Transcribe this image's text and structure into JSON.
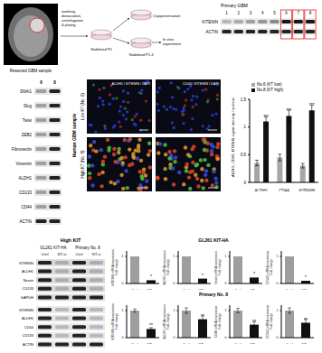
{
  "schematic": {
    "image_label": "Resected GBM sample",
    "process": [
      "washing,",
      "dissociation,",
      "centrifugation",
      "& plating"
    ],
    "stages": [
      "Stabilized P0",
      "Stabilized P1-3"
    ],
    "cryo": "Cryopreservation",
    "experiment": [
      "In vitro",
      "experiment"
    ]
  },
  "blot_primary": {
    "title": "Primary GBM",
    "lanes": [
      "1",
      "2",
      "3",
      "4",
      "5",
      "6",
      "7",
      "8"
    ],
    "rows": [
      "KITENIN",
      "ACTIN"
    ],
    "highlighted": [
      "6",
      "7",
      "8"
    ]
  },
  "blot_emt": {
    "lanes": [
      "6",
      "8"
    ],
    "rows": [
      "SNAI1",
      "Slug",
      "Twist",
      "ZEB2",
      "Fibronectin",
      "Vimentin",
      "ALDH1",
      "CD133",
      "CD44",
      "ACTIN"
    ]
  },
  "immunofluorescence": {
    "title": "Human GBM sample",
    "rows": [
      "Low KT (No. 6)",
      "High KT (No. 8)"
    ],
    "stains": [
      "ALDH1 / KITENIN / DAPI",
      "CD44 / KITENIN / DAPI"
    ]
  },
  "blot_knockdown": {
    "title": "High KIT",
    "groups": [
      "GL261 KIT-HA",
      "Primary No. 8"
    ],
    "lanes": [
      "Cntrl",
      "KIT-si"
    ],
    "rows": [
      "KITENIN",
      "ALDH1",
      "Nestin",
      "CD133",
      "GAPDH",
      "KITENIN",
      "ALDH1",
      "CD44",
      "CD133",
      "ACTIN"
    ]
  },
  "chart_data": [
    {
      "type": "bar",
      "y_label": "ALDH1, CD44, KITENIN signal intensity / nucleus",
      "categories": [
        "ALDH1",
        "CD44",
        "KITENIN"
      ],
      "series": [
        {
          "name": "No.6 (KT low)",
          "color": "#a6a6a6",
          "values": [
            0.35,
            0.45,
            0.3
          ],
          "errors": [
            0.05,
            0.06,
            0.04
          ]
        },
        {
          "name": "No.8 (KT high)",
          "color": "#111111",
          "values": [
            1.1,
            1.2,
            1.3
          ],
          "errors": [
            0.08,
            0.1,
            0.09
          ]
        }
      ],
      "annotations": [
        "***",
        "***",
        "***"
      ],
      "ylim": [
        0,
        1.5
      ],
      "yticks": [
        0,
        0.5,
        1,
        1.5
      ],
      "legend": "top-left"
    },
    {
      "type": "bar",
      "title": "GL261 KIT-HA",
      "y_label": [
        "KITENIN mRNA expression,",
        "Fold change"
      ],
      "categories": [
        "Cntrl",
        "KIT-si"
      ],
      "values": [
        1,
        0.12
      ],
      "colors": [
        "#9e9e9e",
        "#111111"
      ],
      "annotation": "*",
      "ylim": [
        0,
        1.2
      ],
      "yticks": [
        0,
        1
      ]
    },
    {
      "type": "bar",
      "y_label": [
        "ALDH1 mRNA expression,",
        "Fold change"
      ],
      "categories": [
        "Cntrl",
        "KIT-si"
      ],
      "values": [
        1,
        0.18
      ],
      "colors": [
        "#9e9e9e",
        "#111111"
      ],
      "annotation": "*",
      "ylim": [
        0,
        1.2
      ],
      "yticks": [
        0,
        1
      ]
    },
    {
      "type": "bar",
      "y_label": [
        "Nestin mRNA expression,",
        "Fold change"
      ],
      "categories": [
        "Cntrl",
        "KIT-si"
      ],
      "values": [
        1,
        0.22
      ],
      "colors": [
        "#9e9e9e",
        "#111111"
      ],
      "annotation": "*",
      "ylim": [
        0,
        1.2
      ],
      "yticks": [
        0,
        1
      ]
    },
    {
      "type": "bar",
      "y_label": [
        "CD133 mRNA expression,",
        "Fold change"
      ],
      "categories": [
        "Cntrl",
        "KIT-si"
      ],
      "values": [
        1,
        0.1
      ],
      "colors": [
        "#9e9e9e",
        "#111111"
      ],
      "annotation": "*",
      "ylim": [
        0,
        1.2
      ],
      "yticks": [
        0,
        1
      ]
    },
    {
      "type": "bar",
      "title": "Primary No. 8",
      "y_label": [
        "KITENIN mRNA expression,",
        "Fold change"
      ],
      "categories": [
        "Cntrl",
        "KIT-si"
      ],
      "values": [
        1,
        0.32
      ],
      "errors": [
        0.06,
        0.05
      ],
      "colors": [
        "#9e9e9e",
        "#111111"
      ],
      "annotation": "**",
      "ylim": [
        0,
        1.2
      ],
      "yticks": [
        0,
        1
      ]
    },
    {
      "type": "bar",
      "y_label": [
        "ALDH1 mRNA expression,",
        "Fold change"
      ],
      "categories": [
        "Cntrl",
        "KIT-si"
      ],
      "values": [
        1,
        0.68
      ],
      "errors": [
        0.1,
        0.12
      ],
      "colors": [
        "#9e9e9e",
        "#111111"
      ],
      "annotation": "**",
      "ylim": [
        0,
        1.2
      ],
      "yticks": [
        0,
        1
      ]
    },
    {
      "type": "bar",
      "y_label": [
        "CD44 mRNA expression,",
        "Fold change"
      ],
      "categories": [
        "Cntrl",
        "KIT-si"
      ],
      "values": [
        1,
        0.48
      ],
      "errors": [
        0.08,
        0.1
      ],
      "colors": [
        "#9e9e9e",
        "#111111"
      ],
      "annotation": "**",
      "ylim": [
        0,
        1.2
      ],
      "yticks": [
        0,
        1
      ]
    },
    {
      "type": "bar",
      "y_label": [
        "CD133 mRNA expression,",
        "Fold change"
      ],
      "categories": [
        "Cntrl",
        "KIT-si"
      ],
      "values": [
        1,
        0.55
      ],
      "errors": [
        0.1,
        0.12
      ],
      "colors": [
        "#9e9e9e",
        "#111111"
      ],
      "annotation": "**",
      "ylim": [
        0,
        1.2
      ],
      "yticks": [
        0,
        1
      ]
    }
  ]
}
